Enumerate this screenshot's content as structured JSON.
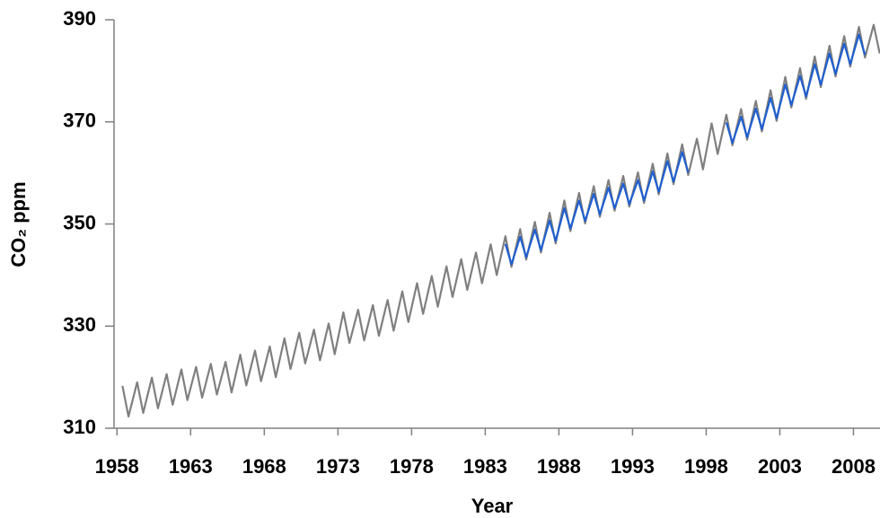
{
  "chart_data": {
    "type": "line",
    "ylabel": "CO₂ ppm",
    "xlabel": "Year",
    "xlim": [
      1957.8,
      2009.8
    ],
    "xticks": [
      1958,
      1963,
      1968,
      1973,
      1978,
      1983,
      1988,
      1993,
      1998,
      2003,
      2008
    ],
    "ylim": [
      310,
      390
    ],
    "yticks": [
      310,
      330,
      350,
      370,
      390
    ],
    "series": [
      {
        "color": "#7f7f7f",
        "x": [
          1958.37,
          1958.78,
          1959.37,
          1959.78,
          1960.37,
          1960.78,
          1961.37,
          1961.78,
          1962.37,
          1962.78,
          1963.37,
          1963.78,
          1964.37,
          1964.78,
          1965.37,
          1965.78,
          1966.37,
          1966.78,
          1967.37,
          1967.78,
          1968.37,
          1968.78,
          1969.37,
          1969.78,
          1970.37,
          1970.78,
          1971.37,
          1971.78,
          1972.37,
          1972.78,
          1973.37,
          1973.78,
          1974.37,
          1974.78,
          1975.37,
          1975.78,
          1976.37,
          1976.78,
          1977.37,
          1977.78,
          1978.37,
          1978.78,
          1979.37,
          1979.78,
          1980.37,
          1980.78,
          1981.37,
          1981.78,
          1982.37,
          1982.78,
          1983.37,
          1983.78,
          1984.37,
          1984.78,
          1985.37,
          1985.78,
          1986.37,
          1986.78,
          1987.37,
          1987.78,
          1988.37,
          1988.78,
          1989.37,
          1989.78,
          1990.37,
          1990.78,
          1991.37,
          1991.78,
          1992.37,
          1992.78,
          1993.37,
          1993.78,
          1994.37,
          1994.78,
          1995.37,
          1995.78,
          1996.37,
          1996.78,
          1997.37,
          1997.78,
          1998.37,
          1998.78,
          1999.37,
          1999.78,
          2000.37,
          2000.78,
          2001.37,
          2001.78,
          2002.37,
          2002.78,
          2003.37,
          2003.78,
          2004.37,
          2004.78,
          2005.37,
          2005.78,
          2006.37,
          2006.78,
          2007.37,
          2007.78,
          2008.37,
          2008.78,
          2009.37,
          2009.78
        ],
        "values": [
          318.3,
          312.3,
          319.0,
          313.0,
          319.9,
          313.9,
          320.6,
          314.6,
          321.5,
          315.5,
          322.0,
          316.0,
          322.6,
          316.6,
          323.0,
          317.0,
          324.4,
          318.4,
          325.2,
          319.2,
          326.0,
          320.0,
          327.6,
          321.6,
          328.7,
          322.7,
          329.3,
          323.3,
          330.5,
          324.5,
          332.7,
          326.7,
          333.2,
          327.2,
          334.1,
          328.1,
          335.1,
          329.1,
          336.8,
          330.8,
          338.4,
          332.4,
          339.8,
          333.8,
          341.7,
          335.7,
          343.1,
          337.1,
          344.4,
          338.4,
          346.0,
          340.0,
          347.6,
          341.6,
          349.0,
          343.0,
          350.4,
          344.4,
          352.2,
          346.2,
          354.6,
          348.6,
          356.1,
          350.1,
          357.4,
          351.4,
          358.6,
          352.6,
          359.4,
          353.4,
          360.1,
          354.1,
          361.8,
          355.8,
          363.8,
          357.8,
          365.6,
          359.6,
          366.7,
          360.7,
          369.7,
          363.7,
          371.4,
          365.4,
          372.5,
          366.5,
          374.1,
          368.1,
          376.2,
          370.2,
          378.8,
          372.8,
          380.5,
          374.5,
          382.8,
          376.8,
          384.9,
          378.9,
          386.8,
          380.8,
          388.6,
          382.6,
          389.0,
          383.4
        ]
      },
      {
        "color": "#1f5fd0",
        "x": [
          1984.37,
          1984.78,
          1985.37,
          1985.78,
          1986.37,
          1986.78,
          1987.37,
          1987.78,
          1988.37,
          1988.78,
          1989.37,
          1989.78,
          1990.37,
          1990.78,
          1991.37,
          1991.78,
          1992.37,
          1992.78,
          1993.37,
          1993.78,
          1994.37,
          1994.78,
          1995.37,
          1995.78,
          1996.37,
          1996.78,
          1998.0,
          1999.37,
          1999.78,
          2000.37,
          2000.78,
          2001.37,
          2001.78,
          2002.37,
          2002.78,
          2003.37,
          2003.78,
          2004.37,
          2004.78,
          2005.37,
          2005.78,
          2006.37,
          2006.78,
          2007.37,
          2007.78,
          2008.37,
          2008.78
        ],
        "values": [
          346.1,
          342.1,
          347.5,
          343.5,
          348.9,
          344.9,
          350.7,
          346.7,
          353.1,
          349.1,
          354.6,
          350.6,
          355.9,
          351.9,
          357.1,
          353.1,
          357.9,
          353.9,
          358.6,
          354.6,
          360.3,
          356.3,
          362.3,
          358.3,
          364.1,
          360.1,
          null,
          369.9,
          365.9,
          371.0,
          367.0,
          372.6,
          368.6,
          374.7,
          370.7,
          377.3,
          373.3,
          379.0,
          375.0,
          381.3,
          377.3,
          383.4,
          379.4,
          385.3,
          381.3,
          387.1,
          383.1
        ]
      }
    ]
  }
}
